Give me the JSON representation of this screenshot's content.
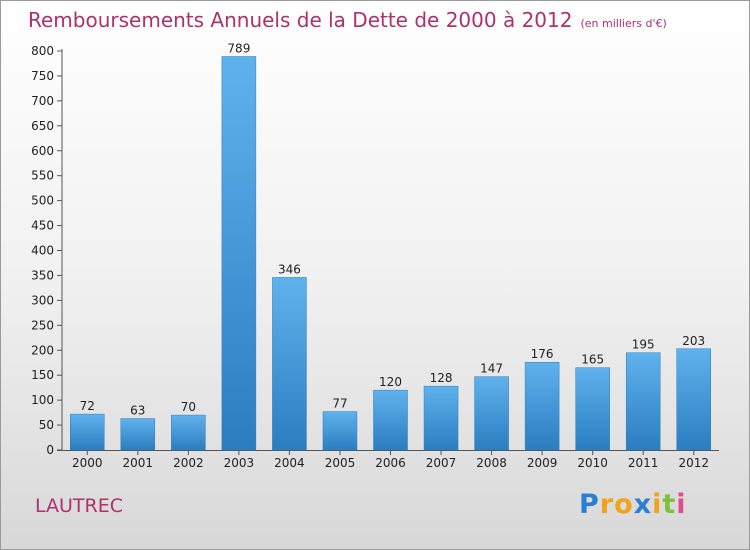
{
  "chart_data": {
    "type": "bar",
    "title": "Remboursements Annuels de la Dette de 2000 à 2012",
    "subtitle": "(en milliers d'€)",
    "categories": [
      "2000",
      "2001",
      "2002",
      "2003",
      "2004",
      "2005",
      "2006",
      "2007",
      "2008",
      "2009",
      "2010",
      "2011",
      "2012"
    ],
    "values": [
      72,
      63,
      70,
      789,
      346,
      77,
      120,
      128,
      147,
      176,
      165,
      195,
      203
    ],
    "ylim": [
      0,
      800
    ],
    "yticks": [
      0,
      50,
      100,
      150,
      200,
      250,
      300,
      350,
      400,
      450,
      500,
      550,
      600,
      650,
      700,
      750,
      800
    ],
    "grid": false,
    "bar_color": "#3e92d4",
    "title_color": "#b0306a"
  },
  "commune": "LAUTREC",
  "logo": {
    "letters": [
      "P",
      "r",
      "o",
      "x",
      "i",
      "t",
      "i"
    ],
    "colors": [
      "#2a7fd0",
      "#f3a21c",
      "#f3a21c",
      "#2a7fd0",
      "#f3a21c",
      "#7cc23b",
      "#e24b8c"
    ]
  }
}
